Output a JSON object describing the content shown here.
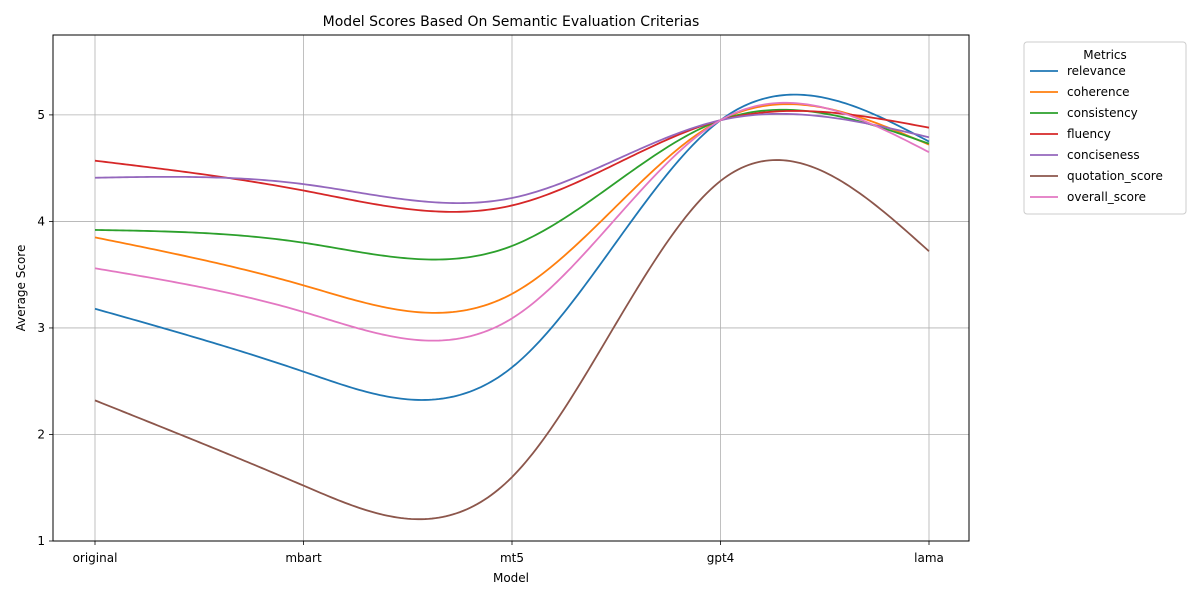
{
  "chart_data": {
    "type": "line",
    "title": "Model Scores Based On Semantic Evaluation Criterias",
    "xlabel": "Model",
    "ylabel": "Average Score",
    "categories": [
      "original",
      "mbart",
      "mt5",
      "gpt4",
      "lama"
    ],
    "ylim": [
      1.0,
      5.75
    ],
    "yticks": [
      1,
      2,
      3,
      4,
      5
    ],
    "grid": true,
    "legend": {
      "title": "Metrics",
      "placement": "outside-top-right"
    },
    "series": [
      {
        "name": "relevance",
        "color": "#1f77b4",
        "values": [
          3.18,
          2.59,
          2.63,
          4.95,
          4.75
        ]
      },
      {
        "name": "coherence",
        "color": "#ff7f0e",
        "values": [
          3.85,
          3.4,
          3.32,
          4.95,
          4.72
        ]
      },
      {
        "name": "consistency",
        "color": "#2ca02c",
        "values": [
          3.92,
          3.8,
          3.77,
          4.95,
          4.73
        ]
      },
      {
        "name": "fluency",
        "color": "#d62728",
        "values": [
          4.57,
          4.29,
          4.15,
          4.95,
          4.88
        ]
      },
      {
        "name": "conciseness",
        "color": "#9467bd",
        "values": [
          4.41,
          4.35,
          4.22,
          4.95,
          4.79
        ]
      },
      {
        "name": "quotation_score",
        "color": "#8c564b",
        "values": [
          2.32,
          1.52,
          1.6,
          4.38,
          3.72
        ]
      },
      {
        "name": "overall_score",
        "color": "#e377c2",
        "values": [
          3.56,
          3.15,
          3.09,
          4.95,
          4.65
        ]
      }
    ]
  }
}
